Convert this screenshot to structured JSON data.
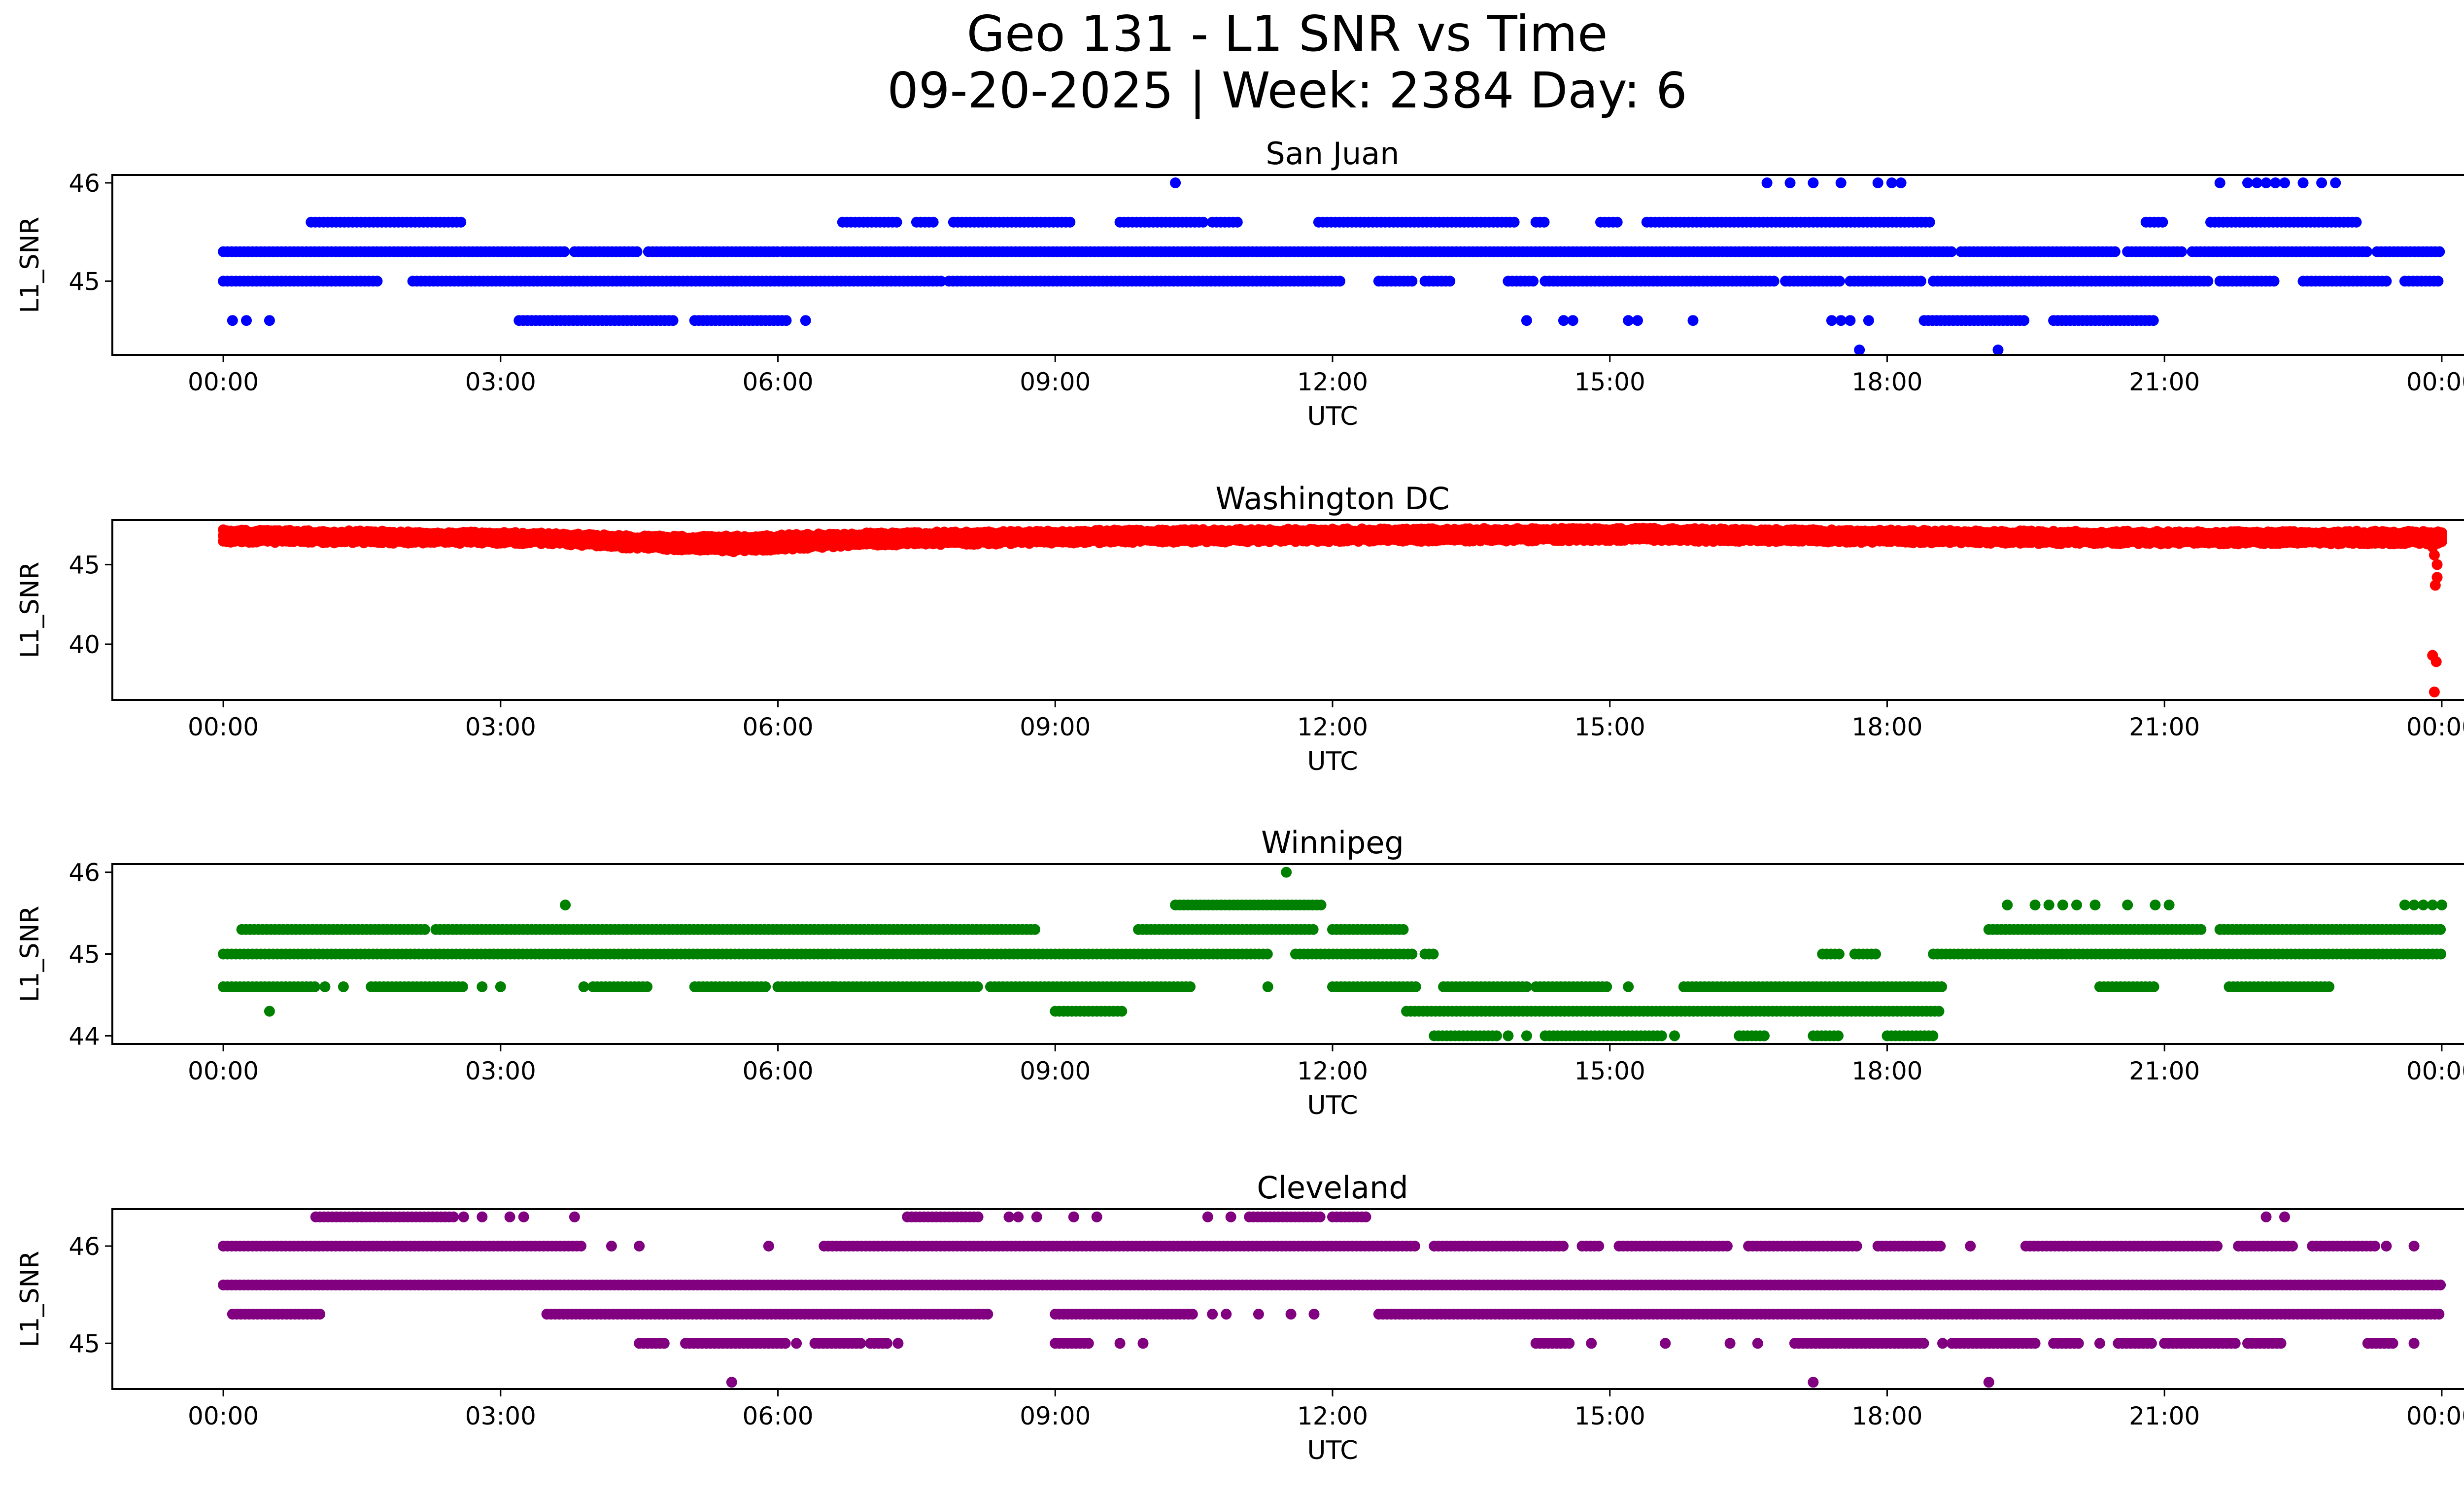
{
  "figure": {
    "title_line1": "Geo 131 - L1 SNR vs Time",
    "title_line2": "09-20-2025 | Week: 2384 Day: 6"
  },
  "chart_data": [
    {
      "type": "scatter",
      "title": "San Juan",
      "xlabel": "UTC",
      "ylabel": "L1_SNR",
      "color": "#0000ff",
      "x_range_hours": [
        -1.2,
        25.2
      ],
      "ylim": [
        44.25,
        46.08
      ],
      "xticks": [
        "00:00",
        "03:00",
        "06:00",
        "09:00",
        "12:00",
        "15:00",
        "18:00",
        "21:00",
        "00:00"
      ],
      "yticks": [
        45,
        46
      ],
      "levels": [
        {
          "y": 45.0,
          "segments": [
            [
              0.0,
              1.7
            ],
            [
              2.05,
              7.8
            ],
            [
              7.85,
              12.1
            ],
            [
              12.5,
              12.9
            ],
            [
              13.0,
              13.3
            ],
            [
              13.9,
              14.2
            ],
            [
              14.3,
              16.8
            ],
            [
              16.9,
              17.5
            ],
            [
              17.6,
              18.4
            ],
            [
              18.5,
              21.5
            ],
            [
              21.6,
              22.2
            ],
            [
              22.5,
              23.4
            ],
            [
              23.6,
              24.0
            ]
          ]
        },
        {
          "y": 45.3,
          "segments": [
            [
              0.0,
              3.7
            ],
            [
              3.8,
              4.5
            ],
            [
              4.6,
              6.0
            ],
            [
              6.05,
              18.7
            ],
            [
              18.8,
              20.5
            ],
            [
              20.6,
              21.2
            ],
            [
              21.3,
              23.2
            ],
            [
              23.3,
              24.0
            ]
          ]
        },
        {
          "y": 45.6,
          "segments": [
            [
              0.95,
              2.6
            ],
            [
              6.7,
              7.3
            ],
            [
              7.5,
              7.7
            ],
            [
              7.9,
              9.2
            ],
            [
              9.7,
              10.6
            ],
            [
              10.7,
              11.0
            ],
            [
              11.85,
              14.0
            ],
            [
              14.2,
              14.3
            ],
            [
              14.9,
              15.1
            ],
            [
              15.4,
              18.5
            ],
            [
              20.8,
              21.0
            ],
            [
              21.5,
              23.1
            ]
          ]
        },
        {
          "y": 46.0,
          "points": [
            10.3,
            16.7,
            16.95,
            17.2,
            17.5,
            17.9,
            18.05,
            18.15,
            21.6,
            21.9,
            22.0,
            22.1,
            22.2,
            22.3,
            22.5,
            22.7,
            22.85
          ]
        },
        {
          "y": 44.6,
          "segments": [
            [
              3.2,
              4.9
            ],
            [
              5.1,
              6.1
            ]
          ],
          "points": [
            0.1,
            0.25,
            0.5,
            6.3,
            14.1,
            14.5,
            14.6,
            15.2,
            15.3,
            15.9,
            17.4,
            17.5,
            17.6,
            17.8
          ]
        },
        {
          "y": 44.6,
          "segments": [
            [
              18.4,
              19.5
            ],
            [
              19.8,
              20.9
            ]
          ]
        },
        {
          "y": 44.3,
          "points": [
            17.7,
            19.2
          ]
        }
      ]
    },
    {
      "type": "scatter",
      "title": "Washington DC",
      "xlabel": "UTC",
      "ylabel": "L1_SNR",
      "color": "#ff0000",
      "x_range_hours": [
        -1.2,
        25.2
      ],
      "ylim": [
        36.5,
        47.8
      ],
      "xticks": [
        "00:00",
        "03:00",
        "06:00",
        "09:00",
        "12:00",
        "15:00",
        "18:00",
        "21:00",
        "00:00"
      ],
      "yticks": [
        40,
        45
      ],
      "band": [
        {
          "h": 0.0,
          "lo": 46.4,
          "hi": 47.2
        },
        {
          "h": 3.5,
          "lo": 46.3,
          "hi": 47.0
        },
        {
          "h": 4.5,
          "lo": 46.0,
          "hi": 46.8
        },
        {
          "h": 5.5,
          "lo": 45.8,
          "hi": 46.8
        },
        {
          "h": 7.0,
          "lo": 46.2,
          "hi": 47.0
        },
        {
          "h": 10.0,
          "lo": 46.4,
          "hi": 47.2
        },
        {
          "h": 15.0,
          "lo": 46.5,
          "hi": 47.3
        },
        {
          "h": 20.0,
          "lo": 46.3,
          "hi": 47.1
        },
        {
          "h": 24.0,
          "lo": 46.3,
          "hi": 47.1
        }
      ],
      "outliers": [
        [
          23.9,
          46.1
        ],
        [
          23.92,
          45.6
        ],
        [
          23.95,
          45.0
        ],
        [
          23.95,
          44.2
        ],
        [
          23.93,
          43.7
        ],
        [
          23.9,
          39.3
        ],
        [
          23.94,
          38.9
        ],
        [
          23.92,
          37.0
        ]
      ]
    },
    {
      "type": "scatter",
      "title": "Winnipeg",
      "xlabel": "UTC",
      "ylabel": "L1_SNR",
      "color": "#008000",
      "x_range_hours": [
        -1.2,
        25.2
      ],
      "ylim": [
        43.9,
        46.1
      ],
      "xticks": [
        "00:00",
        "03:00",
        "06:00",
        "09:00",
        "12:00",
        "15:00",
        "18:00",
        "21:00",
        "00:00"
      ],
      "yticks": [
        44,
        45,
        46
      ],
      "levels": [
        {
          "y": 45.0,
          "segments": [
            [
              0.0,
              11.3
            ],
            [
              11.6,
              12.9
            ],
            [
              13.0,
              13.1
            ],
            [
              17.3,
              17.5
            ],
            [
              17.65,
              17.9
            ],
            [
              18.5,
              24.0
            ]
          ]
        },
        {
          "y": 45.3,
          "segments": [
            [
              0.2,
              2.2
            ],
            [
              2.3,
              8.8
            ],
            [
              9.9,
              11.8
            ],
            [
              12.0,
              12.8
            ],
            [
              19.1,
              21.4
            ],
            [
              21.6,
              24.0
            ]
          ]
        },
        {
          "y": 45.6,
          "points": [
            3.7,
            19.3,
            19.6,
            19.75,
            19.9,
            20.05,
            20.25,
            20.6,
            20.9,
            21.05,
            23.6,
            23.7,
            23.8,
            23.9,
            24.0
          ]
        },
        {
          "y": 45.6,
          "segments": [
            [
              10.3,
              11.9
            ]
          ]
        },
        {
          "y": 46.0,
          "points": [
            11.5
          ]
        },
        {
          "y": 44.6,
          "segments": [
            [
              0.0,
              1.0
            ],
            [
              1.6,
              2.6
            ],
            [
              4.0,
              4.6
            ],
            [
              5.1,
              5.9
            ],
            [
              6.0,
              8.2
            ],
            [
              8.3,
              10.5
            ],
            [
              12.0,
              12.9
            ],
            [
              13.2,
              14.1
            ],
            [
              14.2,
              15.0
            ],
            [
              15.8,
              18.6
            ],
            [
              20.3,
              20.9
            ],
            [
              21.7,
              22.8
            ]
          ],
          "points": [
            1.1,
            1.3,
            2.8,
            3.0,
            3.9,
            6.6,
            9.7,
            11.3,
            15.2
          ]
        },
        {
          "y": 44.3,
          "segments": [
            [
              9.0,
              9.75
            ],
            [
              12.8,
              18.6
            ]
          ],
          "points": [
            0.5
          ]
        },
        {
          "y": 44.0,
          "segments": [
            [
              13.1,
              13.8
            ],
            [
              14.3,
              15.6
            ],
            [
              16.4,
              16.7
            ],
            [
              17.2,
              17.5
            ],
            [
              18.0,
              18.5
            ]
          ],
          "points": [
            13.9,
            14.1,
            15.7
          ]
        }
      ]
    },
    {
      "type": "scatter",
      "title": "Cleveland",
      "xlabel": "UTC",
      "ylabel": "L1_SNR",
      "color": "#800080",
      "x_range_hours": [
        -1.2,
        25.2
      ],
      "ylim": [
        44.53,
        46.38
      ],
      "xticks": [
        "00:00",
        "03:00",
        "06:00",
        "09:00",
        "12:00",
        "15:00",
        "18:00",
        "21:00",
        "00:00"
      ],
      "yticks": [
        45,
        46
      ],
      "levels": [
        {
          "y": 45.6,
          "segments": [
            [
              0.0,
              24.0
            ]
          ]
        },
        {
          "y": 45.3,
          "segments": [
            [
              0.1,
              1.05
            ],
            [
              3.5,
              8.3
            ],
            [
              9.0,
              10.5
            ],
            [
              12.5,
              16.5
            ],
            [
              16.5,
              24.0
            ]
          ],
          "points": [
            10.7,
            10.85,
            11.2,
            11.55,
            11.8
          ]
        },
        {
          "y": 46.0,
          "segments": [
            [
              0.0,
              3.9
            ],
            [
              6.5,
              12.9
            ],
            [
              13.1,
              14.5
            ],
            [
              14.7,
              14.9
            ],
            [
              15.1,
              16.3
            ],
            [
              16.5,
              17.7
            ],
            [
              17.9,
              18.6
            ],
            [
              19.5,
              21.6
            ],
            [
              21.8,
              22.4
            ],
            [
              22.6,
              23.3
            ]
          ],
          "points": [
            4.2,
            4.5,
            5.9,
            18.9,
            23.4,
            23.7
          ]
        },
        {
          "y": 46.3,
          "segments": [
            [
              1.0,
              1.5
            ],
            [
              1.5,
              2.5
            ],
            [
              7.4,
              8.2
            ],
            [
              11.1,
              11.9
            ],
            [
              12.0,
              12.4
            ]
          ],
          "points": [
            2.6,
            2.8,
            3.1,
            3.25,
            3.8,
            8.5,
            8.6,
            8.8,
            9.2,
            9.45,
            10.65,
            10.9,
            22.1,
            22.3
          ]
        },
        {
          "y": 45.0,
          "segments": [
            [
              4.5,
              4.8
            ],
            [
              5.0,
              6.1
            ],
            [
              6.4,
              6.9
            ],
            [
              7.0,
              7.2
            ],
            [
              9.0,
              9.4
            ],
            [
              14.2,
              14.6
            ],
            [
              17.0,
              18.4
            ],
            [
              18.7,
              19.6
            ],
            [
              19.8,
              20.1
            ],
            [
              20.5,
              20.9
            ],
            [
              21.0,
              21.8
            ],
            [
              21.9,
              22.3
            ],
            [
              23.2,
              23.5
            ]
          ],
          "points": [
            6.2,
            7.3,
            9.7,
            9.95,
            14.8,
            15.6,
            16.3,
            16.6,
            18.6,
            20.3,
            21.0,
            23.7
          ]
        },
        {
          "y": 44.6,
          "points": [
            5.5,
            17.2,
            19.1
          ]
        }
      ]
    }
  ]
}
